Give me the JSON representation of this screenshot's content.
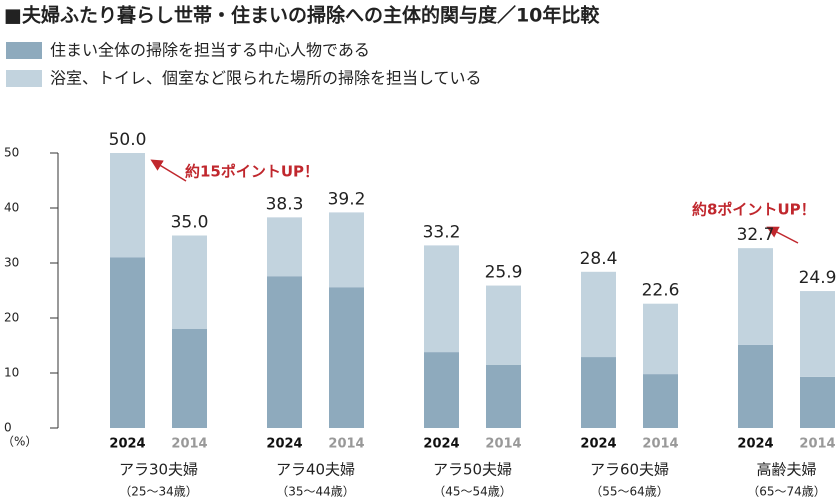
{
  "chart_data": {
    "type": "stacked-bar",
    "title": "■夫婦ふたり暮らし世帯・住まいの掃除への主体的関与度／10年比較",
    "y_unit": "（%）",
    "groups": [
      {
        "name": "アラ30夫婦",
        "range": "（25～34歳）"
      },
      {
        "name": "アラ40夫婦",
        "range": "（35～44歳）"
      },
      {
        "name": "アラ50夫婦",
        "range": "（45～54歳）"
      },
      {
        "name": "アラ60夫婦",
        "range": "（55～64歳）"
      },
      {
        "name": "高齢夫婦",
        "range": "（65～74歳）"
      }
    ],
    "years": [
      "2024",
      "2014"
    ],
    "series": [
      {
        "name": "住まい全体の掃除を担当する中心人物である",
        "color": "#8eaabd",
        "values": [
          31,
          18,
          27.6,
          25.6,
          13.8,
          11.5,
          12.9,
          9.8,
          15.1,
          9.3
        ]
      },
      {
        "name": "浴室、トイレ、個室など限られた場所の掃除を担当している",
        "color": "#c2d3de",
        "values": [
          19,
          17,
          10.7,
          13.6,
          19.4,
          14.4,
          15.5,
          12.8,
          17.6,
          15.6
        ]
      }
    ],
    "totals": [
      50,
      35,
      38.3,
      39.2,
      33.2,
      25.9,
      28.4,
      22.6,
      32.7,
      24.9
    ],
    "total_labels": [
      "50.0",
      "35.0",
      "38.3",
      "39.2",
      "33.2",
      "25.9",
      "28.4",
      "22.6",
      "32.7",
      "24.9"
    ],
    "annotations": [
      "約15ポイントUP！",
      "約8ポイントUP！"
    ],
    "ylim": [
      0,
      50
    ],
    "yticks": [
      0,
      10,
      20,
      30,
      40,
      50
    ]
  }
}
